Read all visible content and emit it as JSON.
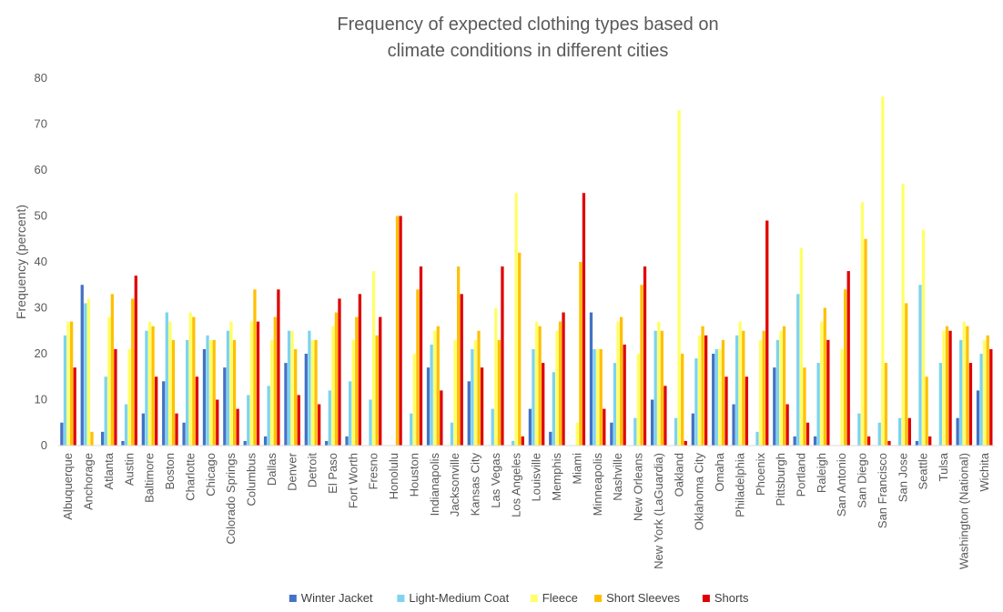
{
  "chart_data": {
    "type": "bar",
    "title_lines": [
      "Frequency of expected clothing types based on",
      "climate conditions in different cities"
    ],
    "xlabel": "",
    "ylabel": "Frequency (percent)",
    "ylim": [
      0,
      80
    ],
    "yticks": [
      0,
      10,
      20,
      30,
      40,
      50,
      60,
      70,
      80
    ],
    "grid": false,
    "legend_position": "bottom",
    "categories": [
      "Albuquerque",
      "Anchorage",
      "Atlanta",
      "Austin",
      "Baltimore",
      "Boston",
      "Charlotte",
      "Chicago",
      "Colorado Springs",
      "Columbus",
      "Dallas",
      "Denver",
      "Detroit",
      "El Paso",
      "Fort Worth",
      "Fresno",
      "Honolulu",
      "Houston",
      "Indianapolis",
      "Jacksonville",
      "Kansas City",
      "Las Vegas",
      "Los Angeles",
      "Louisville",
      "Memphis",
      "Miami",
      "Minneapolis",
      "Nashville",
      "New Orleans",
      "New York (LaGuardia)",
      "Oakland",
      "Oklahoma City",
      "Omaha",
      "Philadelphia",
      "Phoenix",
      "Pittsburgh",
      "Portland",
      "Raleigh",
      "San Antonio",
      "San Diego",
      "San Francisco",
      "San Jose",
      "Seattle",
      "Tulsa",
      "Washington (National)",
      "Wichita"
    ],
    "series": [
      {
        "name": "Winter Jacket",
        "color": "#4472C4",
        "values": [
          5,
          35,
          3,
          1,
          7,
          14,
          5,
          21,
          17,
          1,
          2,
          18,
          20,
          1,
          2,
          0,
          0,
          0,
          17,
          0,
          14,
          0,
          0,
          8,
          3,
          0,
          29,
          5,
          0,
          10,
          0,
          7,
          20,
          9,
          0,
          17,
          2,
          2,
          0,
          0,
          0,
          0,
          1,
          0,
          6,
          12
        ]
      },
      {
        "name": "Light-Medium Coat",
        "color": "#7DD3F0",
        "values": [
          24,
          31,
          15,
          9,
          25,
          29,
          23,
          24,
          25,
          11,
          13,
          25,
          25,
          12,
          14,
          10,
          0,
          7,
          22,
          5,
          21,
          8,
          1,
          21,
          16,
          0,
          21,
          18,
          6,
          25,
          6,
          19,
          21,
          24,
          3,
          23,
          33,
          18,
          0,
          7,
          5,
          6,
          35,
          18,
          23,
          20
        ]
      },
      {
        "name": "Fleece",
        "color": "#FFFF66",
        "values": [
          27,
          32,
          28,
          21,
          27,
          27,
          29,
          23,
          27,
          27,
          23,
          25,
          23,
          26,
          23,
          38,
          0,
          20,
          25,
          23,
          23,
          30,
          55,
          27,
          25,
          5,
          21,
          27,
          20,
          27,
          73,
          24,
          21,
          27,
          23,
          25,
          43,
          27,
          21,
          53,
          76,
          57,
          47,
          25,
          27,
          23
        ]
      },
      {
        "name": "Short Sleeves",
        "color": "#FFC000",
        "values": [
          27,
          3,
          33,
          32,
          26,
          23,
          28,
          23,
          23,
          34,
          28,
          21,
          23,
          29,
          28,
          24,
          50,
          34,
          26,
          39,
          25,
          23,
          42,
          26,
          27,
          40,
          21,
          28,
          35,
          25,
          20,
          26,
          23,
          25,
          25,
          26,
          17,
          30,
          34,
          45,
          18,
          31,
          15,
          26,
          26,
          24
        ]
      },
      {
        "name": "Shorts",
        "color": "#E00000",
        "values": [
          17,
          0,
          21,
          37,
          15,
          7,
          15,
          10,
          8,
          27,
          34,
          11,
          9,
          32,
          33,
          28,
          50,
          39,
          12,
          33,
          17,
          39,
          2,
          18,
          29,
          55,
          8,
          22,
          39,
          13,
          1,
          24,
          15,
          15,
          49,
          9,
          5,
          23,
          38,
          2,
          1,
          6,
          2,
          25,
          18,
          21
        ]
      }
    ]
  }
}
